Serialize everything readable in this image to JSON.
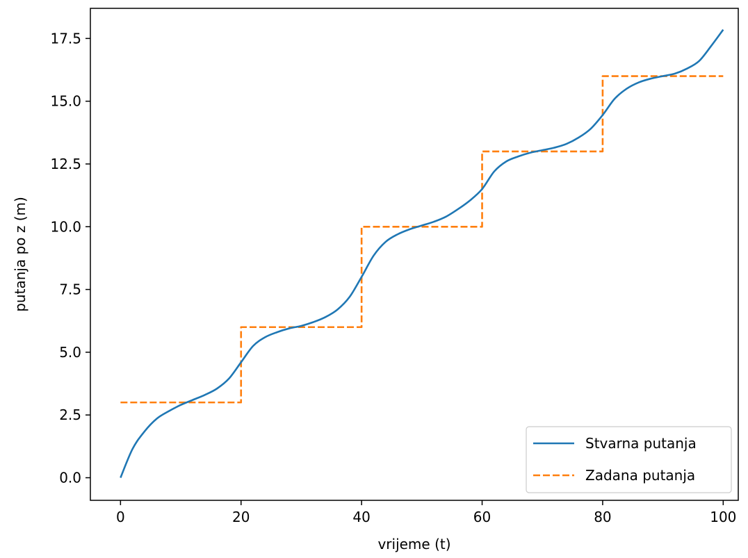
{
  "chart_data": {
    "type": "line",
    "xlabel": "vrijeme (t)",
    "ylabel": "putanja po z (m)",
    "xlim": [
      -5,
      102.5
    ],
    "ylim": [
      -0.9,
      18.7
    ],
    "x_ticks": [
      0,
      20,
      40,
      60,
      80,
      100
    ],
    "x_tick_labels": [
      "0",
      "20",
      "40",
      "60",
      "80",
      "100"
    ],
    "y_ticks": [
      0,
      2.5,
      5,
      7.5,
      10,
      12.5,
      15,
      17.5
    ],
    "y_tick_labels": [
      "0.0",
      "2.5",
      "5.0",
      "7.5",
      "10.0",
      "12.5",
      "15.0",
      "17.5"
    ],
    "grid": false,
    "legend_position": "lower-right",
    "series": [
      {
        "name": "Stvarna putanja",
        "style": "solid",
        "color": "#1f77b4",
        "x": [
          0,
          2,
          4,
          6,
          8,
          10,
          12,
          14,
          16,
          18,
          20,
          22,
          24,
          26,
          28,
          30,
          32,
          34,
          36,
          38,
          40,
          42,
          44,
          46,
          48,
          50,
          52,
          54,
          56,
          58,
          60,
          62,
          64,
          66,
          68,
          70,
          72,
          74,
          76,
          78,
          80,
          82,
          84,
          86,
          88,
          90,
          92,
          94,
          96,
          98,
          100
        ],
        "y": [
          0.0,
          1.15,
          1.85,
          2.35,
          2.65,
          2.9,
          3.1,
          3.3,
          3.55,
          3.95,
          4.6,
          5.25,
          5.6,
          5.8,
          5.95,
          6.05,
          6.2,
          6.4,
          6.7,
          7.2,
          8.0,
          8.85,
          9.4,
          9.7,
          9.9,
          10.05,
          10.2,
          10.4,
          10.7,
          11.05,
          11.5,
          12.2,
          12.6,
          12.8,
          12.95,
          13.05,
          13.15,
          13.3,
          13.55,
          13.9,
          14.45,
          15.1,
          15.5,
          15.75,
          15.9,
          16.0,
          16.1,
          16.3,
          16.6,
          17.2,
          17.85
        ]
      },
      {
        "name": "Zadana putanja",
        "style": "dashed",
        "color": "#ff7f0e",
        "x": [
          0,
          20,
          20,
          40,
          40,
          60,
          60,
          80,
          80,
          100
        ],
        "y": [
          3,
          3,
          6,
          6,
          10,
          10,
          13,
          13,
          16,
          16
        ]
      }
    ]
  }
}
